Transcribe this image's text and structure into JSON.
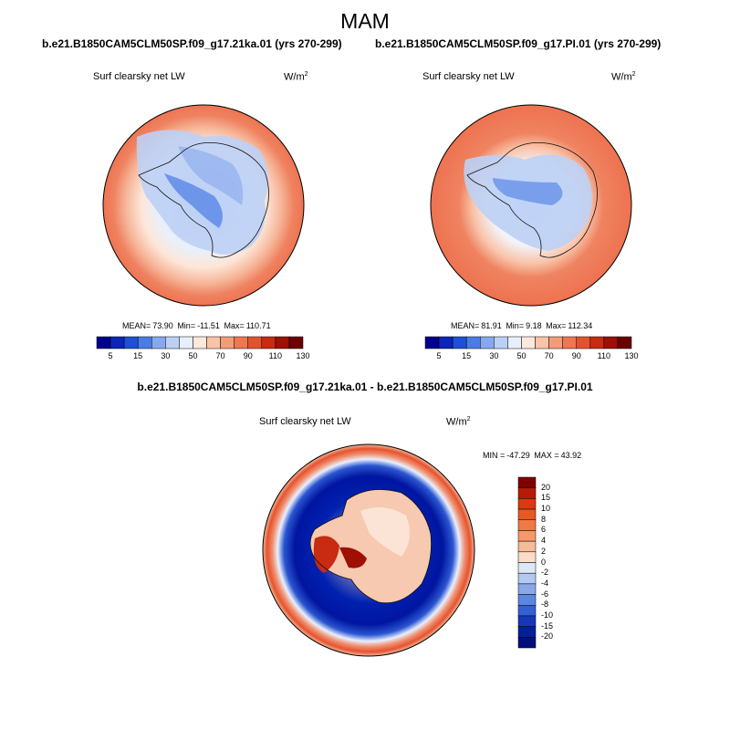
{
  "season": "MAM",
  "panels": [
    {
      "case": "b.e21.B1850CAM5CLM50SP.f09_g17.21ka.01 (yrs 270-299)",
      "variable": "Surf clearsky net LW",
      "unit_base": "W/m",
      "unit_exp": "2",
      "stats": {
        "mean_label": "MEAN=",
        "mean": "73.90",
        "min_label": "Min=",
        "min": "-11.51",
        "max_label": "Max=",
        "max": "110.71"
      },
      "ocean_level": "80"
    },
    {
      "case": "b.e21.B1850CAM5CLM50SP.f09_g17.PI.01 (yrs 270-299)",
      "variable": "Surf clearsky net LW",
      "unit_base": "W/m",
      "unit_exp": "2",
      "stats": {
        "mean_label": "MEAN=",
        "mean": "81.91",
        "min_label": "Min=",
        "min": "9.18",
        "max_label": "Max=",
        "max": "112.34"
      },
      "ocean_level": "90"
    }
  ],
  "colorbar": {
    "labels": [
      "5",
      "15",
      "30",
      "50",
      "70",
      "90",
      "110",
      "130"
    ],
    "colors": [
      "#00008f",
      "#0a25b8",
      "#1f4fd6",
      "#4a7be6",
      "#87a8ef",
      "#bcd0f5",
      "#e7efff",
      "#fde8dc",
      "#f9c4a8",
      "#f49c7a",
      "#ee7650",
      "#e3522f",
      "#c82a12",
      "#9e0f04",
      "#6b0000"
    ]
  },
  "difference": {
    "title": "b.e21.B1850CAM5CLM50SP.f09_g17.21ka.01 - b.e21.B1850CAM5CLM50SP.f09_g17.PI.01",
    "variable": "Surf clearsky net LW",
    "unit_base": "W/m",
    "unit_exp": "2",
    "minmax": {
      "min_label": "MIN =",
      "min": "-47.29",
      "max_label": "MAX =",
      "max": "43.92"
    },
    "colorbar_labels": [
      "20",
      "15",
      "10",
      "8",
      "6",
      "4",
      "2",
      "0",
      "-2",
      "-4",
      "-6",
      "-8",
      "-10",
      "-15",
      "-20"
    ],
    "colorbar_colors": [
      "#800000",
      "#b81a05",
      "#d93a10",
      "#e85a22",
      "#ef7a44",
      "#f29a6c",
      "#f6bb97",
      "#fbdcc6",
      "#dce7f7",
      "#b3c8f0",
      "#8aa8e8",
      "#5c86e0",
      "#3560d2",
      "#1438b8",
      "#041f9a",
      "#00107a"
    ]
  }
}
